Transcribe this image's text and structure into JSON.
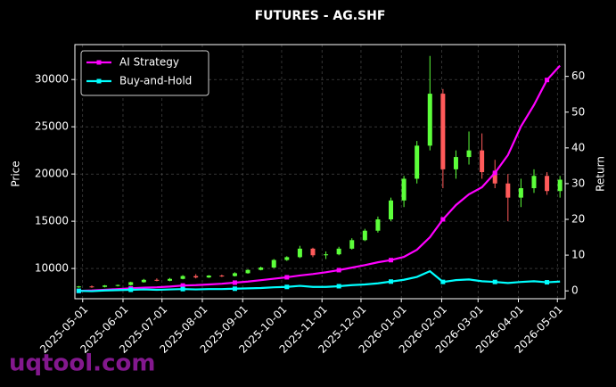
{
  "chart_data": {
    "type": "candlestick",
    "title": "FUTURES - AG.SHF",
    "ylabel": "Price",
    "y2label": "Return",
    "watermark": "uqtool.com",
    "x": [
      "2025-04-28",
      "2025-05-08",
      "2025-05-18",
      "2025-05-28",
      "2025-06-07",
      "2025-06-17",
      "2025-06-27",
      "2025-07-07",
      "2025-07-17",
      "2025-07-27",
      "2025-08-06",
      "2025-08-16",
      "2025-08-26",
      "2025-09-05",
      "2025-09-15",
      "2025-09-25",
      "2025-10-05",
      "2025-10-15",
      "2025-10-25",
      "2025-11-04",
      "2025-11-14",
      "2025-11-24",
      "2025-12-04",
      "2025-12-14",
      "2025-12-24",
      "2026-01-03",
      "2026-01-13",
      "2026-01-23",
      "2026-02-02",
      "2026-02-12",
      "2026-02-22",
      "2026-03-04",
      "2026-03-14",
      "2026-03-24",
      "2026-04-03",
      "2026-04-13",
      "2026-04-23",
      "2026-05-03"
    ],
    "open": [
      8000,
      8100,
      8050,
      8200,
      8250,
      8550,
      8800,
      8700,
      8900,
      9200,
      9050,
      9250,
      9200,
      9500,
      9850,
      10100,
      10900,
      11200,
      12100,
      11400,
      11500,
      12100,
      13000,
      14000,
      15200,
      17200,
      19500,
      23000,
      28500,
      20500,
      21800,
      22500,
      20200,
      19000,
      17500,
      18500,
      19800,
      18200
    ],
    "high": [
      8150,
      8200,
      8250,
      8300,
      8600,
      8900,
      8950,
      9000,
      9300,
      9400,
      9300,
      9350,
      9600,
      9900,
      10200,
      11000,
      11300,
      12400,
      12200,
      11800,
      12300,
      13200,
      14200,
      15500,
      17500,
      19800,
      23500,
      32500,
      29000,
      22500,
      24500,
      24300,
      21500,
      20000,
      19500,
      20500,
      20200,
      19800
    ],
    "low": [
      7950,
      7950,
      8000,
      8100,
      8200,
      8500,
      8650,
      8650,
      8850,
      8950,
      9000,
      9100,
      9150,
      9450,
      9800,
      10050,
      10800,
      11100,
      11200,
      11000,
      11400,
      12000,
      12900,
      13800,
      15000,
      16500,
      19000,
      22500,
      18500,
      19500,
      21000,
      19500,
      18500,
      15000,
      16500,
      18000,
      17800,
      17500
    ],
    "close": [
      8100,
      8050,
      8200,
      8250,
      8550,
      8800,
      8700,
      8900,
      9200,
      9050,
      9250,
      9200,
      9500,
      9850,
      10100,
      10900,
      11200,
      12100,
      11400,
      11500,
      12100,
      13000,
      14000,
      15200,
      17200,
      19500,
      23000,
      28500,
      20500,
      21800,
      22500,
      20200,
      19000,
      17500,
      18500,
      19800,
      18200,
      19400
    ],
    "up_color": "#5cff3a",
    "down_color": "#ff5a5a",
    "series": [
      {
        "name": "AI Strategy",
        "color": "#ff00ff",
        "axis": "y2",
        "values": [
          0,
          0.1,
          0.3,
          0.5,
          0.7,
          0.9,
          1.0,
          1.2,
          1.5,
          1.6,
          1.8,
          2.0,
          2.3,
          2.6,
          3.0,
          3.4,
          3.8,
          4.3,
          4.7,
          5.2,
          5.8,
          6.5,
          7.2,
          8.0,
          8.6,
          9.5,
          11.5,
          15,
          20,
          24,
          27,
          29,
          33,
          38,
          46,
          52,
          59,
          63
        ]
      },
      {
        "name": "Buy-and-Hold",
        "color": "#00ffff",
        "axis": "y2",
        "values": [
          0,
          -0.1,
          0.1,
          0.2,
          0.3,
          0.4,
          0.3,
          0.4,
          0.5,
          0.4,
          0.5,
          0.5,
          0.6,
          0.7,
          0.8,
          1.0,
          1.1,
          1.4,
          1.1,
          1.1,
          1.3,
          1.6,
          1.8,
          2.1,
          2.6,
          3.1,
          3.9,
          5.5,
          2.5,
          3.0,
          3.2,
          2.7,
          2.5,
          2.2,
          2.5,
          2.7,
          2.4,
          2.6
        ]
      }
    ],
    "xlim": [
      "2025-04-25",
      "2026-05-07"
    ],
    "xticks": [
      "2025-05-01",
      "2025-06-01",
      "2025-07-01",
      "2025-08-01",
      "2025-09-01",
      "2025-10-01",
      "2025-11-01",
      "2025-12-01",
      "2026-01-01",
      "2026-02-01",
      "2026-03-01",
      "2026-04-01",
      "2026-05-01"
    ],
    "ylim": [
      6800,
      33700
    ],
    "yticks": [
      10000,
      15000,
      20000,
      25000,
      30000
    ],
    "y2lim": [
      -2.2,
      68.9
    ],
    "y2ticks": [
      0,
      10,
      20,
      30,
      40,
      50,
      60
    ],
    "grid": true,
    "legend": "upper left"
  }
}
